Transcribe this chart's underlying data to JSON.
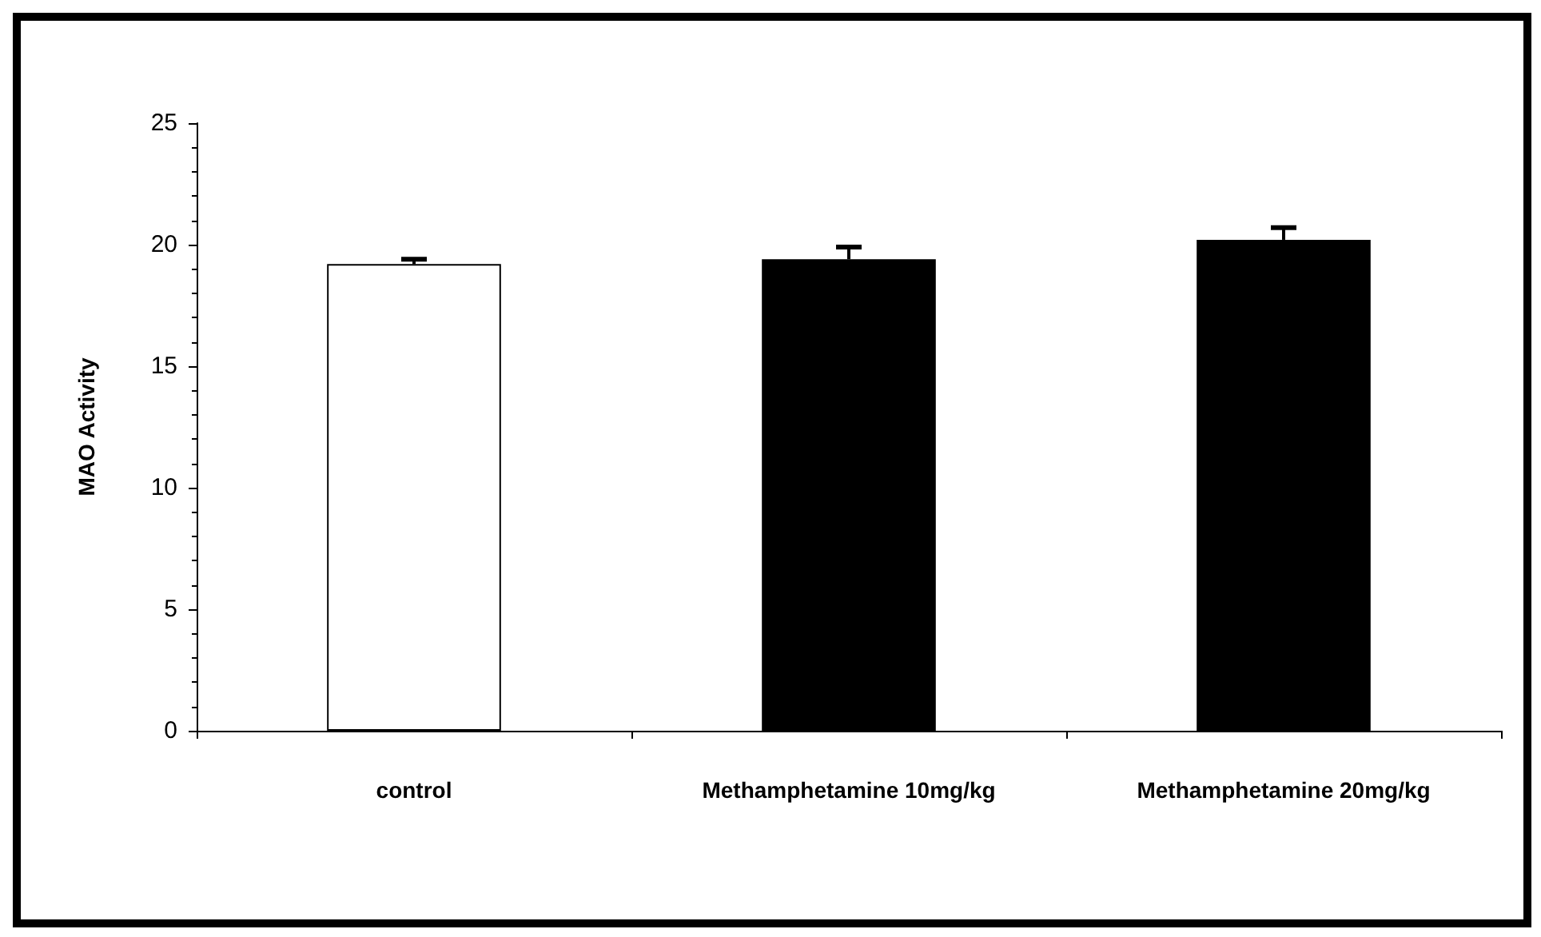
{
  "chart_data": {
    "type": "bar",
    "ylabel": "MAO Activity",
    "categories": [
      "control",
      "Methamphetamine 10mg/kg",
      "Methamphetamine 20mg/kg"
    ],
    "values": [
      19.2,
      19.4,
      20.2
    ],
    "colors": [
      "#ffffff",
      "#000000",
      "#000000"
    ],
    "errors": [
      [
        19.2,
        19.4
      ],
      [
        19.4,
        19.9
      ],
      [
        20.2,
        20.7
      ]
    ],
    "ylim": [
      0,
      25
    ],
    "yticks": [
      0,
      5,
      10,
      15,
      20,
      25
    ],
    "grid": false
  }
}
